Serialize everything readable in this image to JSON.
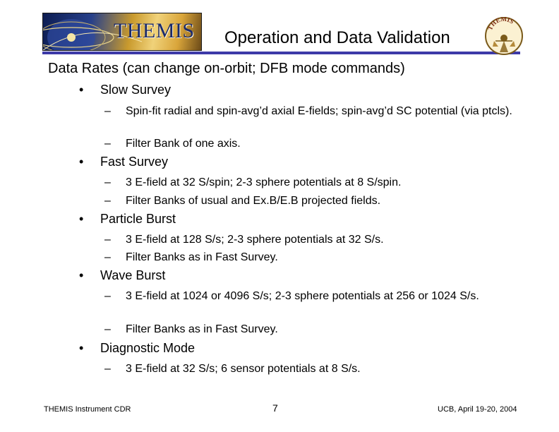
{
  "header": {
    "banner_title": "THEMIS",
    "title": "Operation and Data Validation",
    "rule_color": "#3d3aa8",
    "logo_icon": "themis-mission-logo-icon"
  },
  "content": {
    "heading": "Data Rates (can change on-orbit; DFB mode commands)",
    "bullet_glyph": "•",
    "dash_glyph": "–",
    "bullets": [
      {
        "label": "Slow Survey",
        "subs": [
          "Spin-fit radial and spin-avg’d axial E-fields; spin-avg’d SC potential (via ptcls).",
          "Filter Bank of one axis."
        ]
      },
      {
        "label": "Fast Survey",
        "subs": [
          "3 E-field at 32 S/spin; 2-3 sphere potentials at 8 S/spin.",
          "Filter Banks of usual and Ex.B/E.B projected fields."
        ]
      },
      {
        "label": "Particle Burst",
        "subs": [
          "3 E-field at 128 S/s; 2-3 sphere potentials at 32 S/s.",
          "Filter Banks as in Fast Survey."
        ]
      },
      {
        "label": "Wave Burst",
        "subs": [
          "3 E-field at 1024 or 4096 S/s; 2-3 sphere potentials at 256 or 1024 S/s.",
          "Filter Banks as in Fast Survey."
        ]
      },
      {
        "label": "Diagnostic Mode",
        "subs": [
          "3 E-field at 32 S/s; 6 sensor potentials at 8 S/s."
        ]
      }
    ]
  },
  "footer": {
    "left": "THEMIS Instrument CDR",
    "page_number": "7",
    "right": "UCB, April 19-20, 2004"
  }
}
